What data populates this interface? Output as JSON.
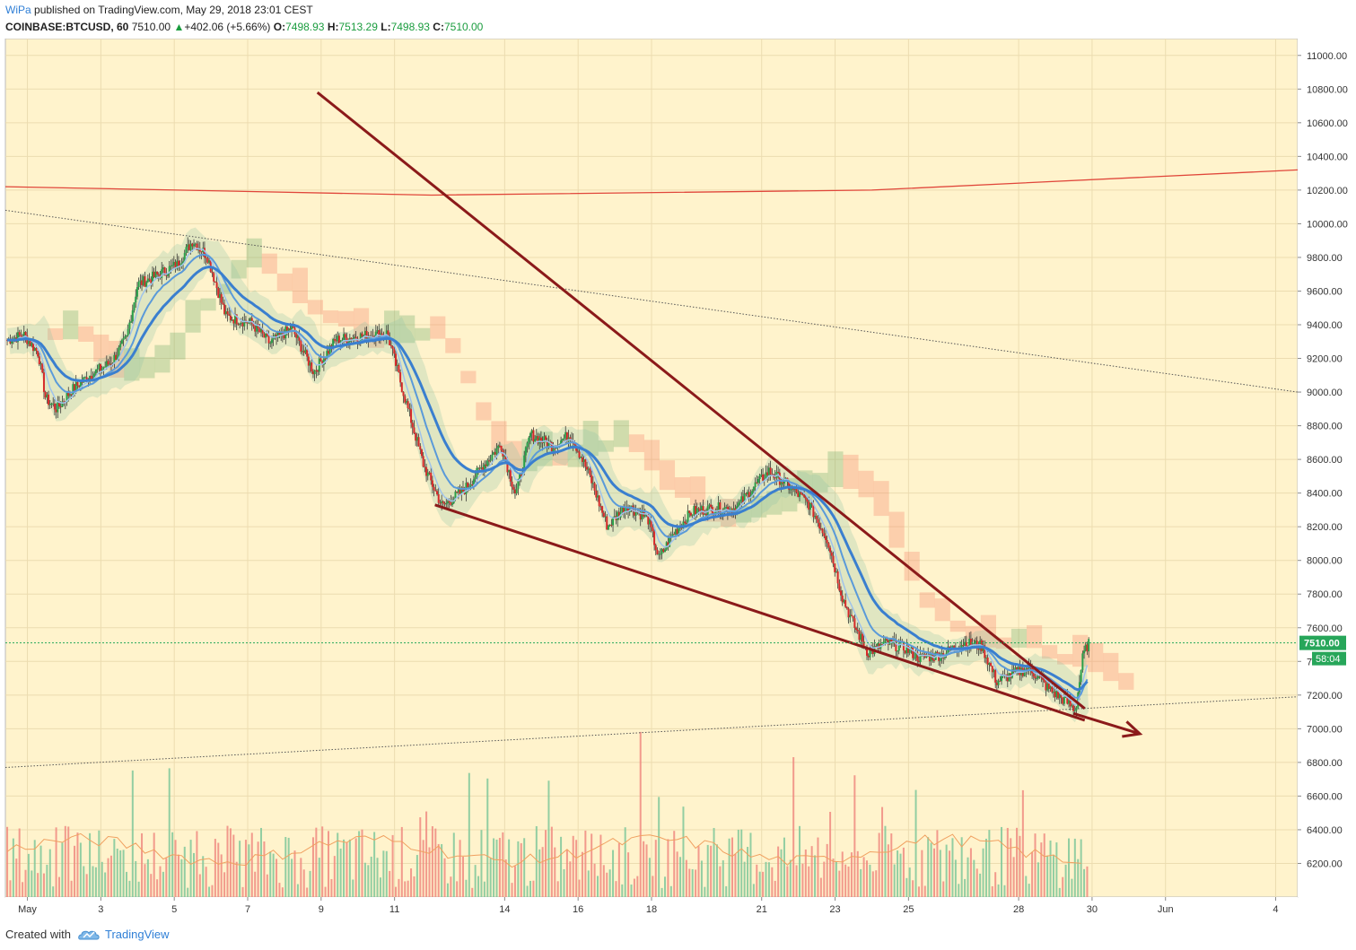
{
  "header": {
    "author": "WiPa",
    "published": "published on TradingView.com, May 29, 2018 23:01 CEST",
    "symbol": "COINBASE:BTCUSD, 60",
    "last": "7510.00",
    "change": "+402.06 (+5.66%)",
    "o_label": "O:",
    "o": "7498.93",
    "h_label": "H:",
    "h": "7513.29",
    "l_label": "L:",
    "l": "7498.93",
    "c_label": "C:",
    "c": "7510.00"
  },
  "footer": {
    "created": "Created with",
    "brand": "TradingView"
  },
  "colors": {
    "background": "#fff3cc",
    "price_line": "#27a65a",
    "trendline": "#8b1a1a",
    "ema": "#3a7fcf",
    "long_ma": "#e0463a",
    "cloud_bull": "#6fae6a",
    "cloud_bear": "#f5866a",
    "volume_up": "#7fc79a",
    "volume_down": "#f08a80"
  },
  "chart_data": {
    "type": "candlestick",
    "timeframe": "60",
    "y_axis": {
      "min": 6000,
      "max": 11100,
      "ticks": [
        6200,
        6400,
        6600,
        6800,
        7000,
        7200,
        7400,
        7600,
        7800,
        8000,
        8200,
        8400,
        8600,
        8800,
        9000,
        9200,
        9400,
        9600,
        9800,
        10000,
        10200,
        10400,
        10600,
        10800,
        11000
      ],
      "tick_labels": [
        "6200.00",
        "6400.00",
        "6600.00",
        "6800.00",
        "7000.00",
        "7200.00",
        "7400.00",
        "7600.00",
        "7800.00",
        "8000.00",
        "8200.00",
        "8400.00",
        "8600.00",
        "8800.00",
        "9000.00",
        "9200.00",
        "9400.00",
        "9600.00",
        "9800.00",
        "10000.00",
        "10200.00",
        "10400.00",
        "10600.00",
        "10800.00",
        "11000.00"
      ]
    },
    "x_axis": {
      "min_day": 0.4,
      "max_day": 35.6,
      "ticks": [
        {
          "day": 1,
          "label": "May"
        },
        {
          "day": 3,
          "label": "3"
        },
        {
          "day": 5,
          "label": "5"
        },
        {
          "day": 7,
          "label": "7"
        },
        {
          "day": 9,
          "label": "9"
        },
        {
          "day": 11,
          "label": "11"
        },
        {
          "day": 14,
          "label": "14"
        },
        {
          "day": 16,
          "label": "16"
        },
        {
          "day": 18,
          "label": "18"
        },
        {
          "day": 21,
          "label": "21"
        },
        {
          "day": 23,
          "label": "23"
        },
        {
          "day": 25,
          "label": "25"
        },
        {
          "day": 28,
          "label": "28"
        },
        {
          "day": 30,
          "label": "30"
        },
        {
          "day": 32,
          "label": "Jun"
        },
        {
          "day": 35,
          "label": "4"
        }
      ]
    },
    "last_price": {
      "value": 7510.0,
      "label": "7510.00",
      "countdown": "58:04"
    },
    "close_path": [
      {
        "day": 0.45,
        "price": 9310
      },
      {
        "day": 0.9,
        "price": 9340
      },
      {
        "day": 1.3,
        "price": 9230
      },
      {
        "day": 1.5,
        "price": 8960
      },
      {
        "day": 1.8,
        "price": 8900
      },
      {
        "day": 2.2,
        "price": 9010
      },
      {
        "day": 2.7,
        "price": 9100
      },
      {
        "day": 3.3,
        "price": 9180
      },
      {
        "day": 3.7,
        "price": 9320
      },
      {
        "day": 4.0,
        "price": 9640
      },
      {
        "day": 4.5,
        "price": 9690
      },
      {
        "day": 5.1,
        "price": 9760
      },
      {
        "day": 5.5,
        "price": 9900
      },
      {
        "day": 5.9,
        "price": 9810
      },
      {
        "day": 6.4,
        "price": 9450
      },
      {
        "day": 7.1,
        "price": 9410
      },
      {
        "day": 7.6,
        "price": 9290
      },
      {
        "day": 8.2,
        "price": 9380
      },
      {
        "day": 8.8,
        "price": 9120
      },
      {
        "day": 9.4,
        "price": 9310
      },
      {
        "day": 10.0,
        "price": 9330
      },
      {
        "day": 10.8,
        "price": 9350
      },
      {
        "day": 11.3,
        "price": 8950
      },
      {
        "day": 11.8,
        "price": 8560
      },
      {
        "day": 12.3,
        "price": 8320
      },
      {
        "day": 12.9,
        "price": 8420
      },
      {
        "day": 13.4,
        "price": 8560
      },
      {
        "day": 13.9,
        "price": 8690
      },
      {
        "day": 14.3,
        "price": 8390
      },
      {
        "day": 14.7,
        "price": 8750
      },
      {
        "day": 15.3,
        "price": 8680
      },
      {
        "day": 15.8,
        "price": 8750
      },
      {
        "day": 16.3,
        "price": 8510
      },
      {
        "day": 16.8,
        "price": 8200
      },
      {
        "day": 17.3,
        "price": 8330
      },
      {
        "day": 17.9,
        "price": 8250
      },
      {
        "day": 18.2,
        "price": 8010
      },
      {
        "day": 18.6,
        "price": 8160
      },
      {
        "day": 19.1,
        "price": 8290
      },
      {
        "day": 19.7,
        "price": 8310
      },
      {
        "day": 20.3,
        "price": 8310
      },
      {
        "day": 20.8,
        "price": 8440
      },
      {
        "day": 21.2,
        "price": 8530
      },
      {
        "day": 21.7,
        "price": 8450
      },
      {
        "day": 22.3,
        "price": 8330
      },
      {
        "day": 22.8,
        "price": 8120
      },
      {
        "day": 23.2,
        "price": 7780
      },
      {
        "day": 23.5,
        "price": 7620
      },
      {
        "day": 23.9,
        "price": 7450
      },
      {
        "day": 24.4,
        "price": 7510
      },
      {
        "day": 24.9,
        "price": 7480
      },
      {
        "day": 25.3,
        "price": 7420
      },
      {
        "day": 25.9,
        "price": 7440
      },
      {
        "day": 26.5,
        "price": 7510
      },
      {
        "day": 27.0,
        "price": 7490
      },
      {
        "day": 27.4,
        "price": 7280
      },
      {
        "day": 27.9,
        "price": 7330
      },
      {
        "day": 28.3,
        "price": 7360
      },
      {
        "day": 28.8,
        "price": 7240
      },
      {
        "day": 29.3,
        "price": 7160
      },
      {
        "day": 29.55,
        "price": 7110
      },
      {
        "day": 29.75,
        "price": 7430
      },
      {
        "day": 29.9,
        "price": 7510
      }
    ],
    "annotations": {
      "upper_wedge_line": [
        {
          "day": 8.9,
          "price": 10780
        },
        {
          "day": 29.8,
          "price": 7120
        }
      ],
      "lower_wedge_line": [
        {
          "day": 12.1,
          "price": 8330
        },
        {
          "day": 29.8,
          "price": 7050
        }
      ],
      "projection_arrow": [
        {
          "day": 29.5,
          "price": 7090
        },
        {
          "day": 31.3,
          "price": 6970
        }
      ],
      "upper_dotted_line": [
        {
          "day": 0.4,
          "price": 10080
        },
        {
          "day": 35.6,
          "price": 9000
        }
      ],
      "lower_dotted_line": [
        {
          "day": 0.4,
          "price": 6770
        },
        {
          "day": 35.6,
          "price": 7190
        }
      ],
      "long_ma_curve": [
        {
          "day": 0.4,
          "price": 10220
        },
        {
          "day": 12.0,
          "price": 10170
        },
        {
          "day": 24.0,
          "price": 10200
        },
        {
          "day": 35.6,
          "price": 10320
        }
      ]
    },
    "volume": {
      "max_label_free": true
    }
  }
}
